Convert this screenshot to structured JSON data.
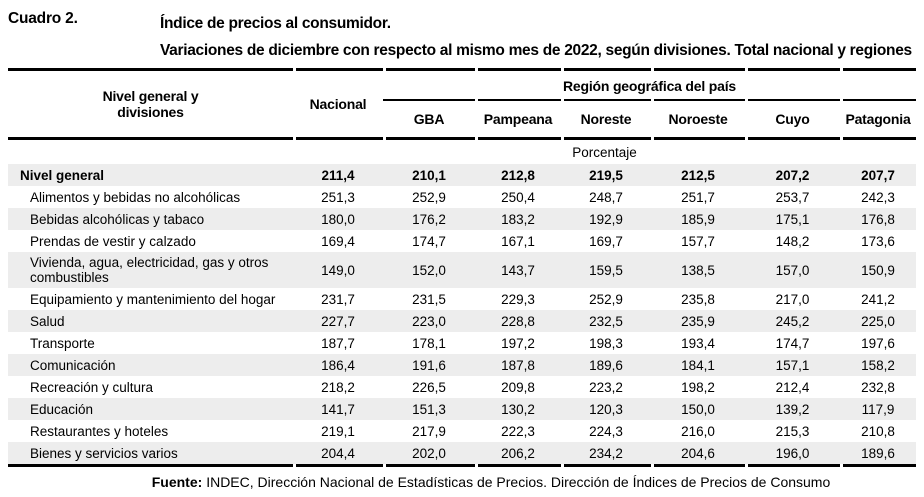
{
  "document": {
    "table_label": "Cuadro 2.",
    "title_line1": "Índice de precios al consumidor.",
    "title_line2": "Variaciones de diciembre con respecto al mismo mes de 2022, según divisiones. Total nacional y regiones",
    "source_label": "Fuente:",
    "source_text": "INDEC, Dirección Nacional de Estadísticas de Precios. Dirección de Índices de Precios de Consumo"
  },
  "table": {
    "col1_header": "Nivel general y divisiones",
    "nacional_header": "Nacional",
    "region_group_header": "Región geográfica del país",
    "region_headers": [
      "GBA",
      "Pampeana",
      "Noreste",
      "Noroeste",
      "Cuyo",
      "Patagonia"
    ],
    "unit_row_label": "Porcentaje",
    "rows": [
      {
        "label": "Nivel general",
        "bold": true,
        "values": [
          "211,4",
          "210,1",
          "212,8",
          "219,5",
          "212,5",
          "207,2",
          "207,7"
        ]
      },
      {
        "label": "Alimentos y bebidas no alcohólicas",
        "values": [
          "251,3",
          "252,9",
          "250,4",
          "248,7",
          "251,7",
          "253,7",
          "242,3"
        ]
      },
      {
        "label": "Bebidas alcohólicas y tabaco",
        "values": [
          "180,0",
          "176,2",
          "183,2",
          "192,9",
          "185,9",
          "175,1",
          "176,8"
        ]
      },
      {
        "label": "Prendas de vestir y calzado",
        "values": [
          "169,4",
          "174,7",
          "167,1",
          "169,7",
          "157,7",
          "148,2",
          "173,6"
        ]
      },
      {
        "label": "Vivienda, agua, electricidad, gas y otros combustibles",
        "two_line": true,
        "values": [
          "149,0",
          "152,0",
          "143,7",
          "159,5",
          "138,5",
          "157,0",
          "150,9"
        ]
      },
      {
        "label": "Equipamiento y mantenimiento del hogar",
        "values": [
          "231,7",
          "231,5",
          "229,3",
          "252,9",
          "235,8",
          "217,0",
          "241,2"
        ]
      },
      {
        "label": "Salud",
        "values": [
          "227,7",
          "223,0",
          "228,8",
          "232,5",
          "235,9",
          "245,2",
          "225,0"
        ]
      },
      {
        "label": "Transporte",
        "values": [
          "187,7",
          "178,1",
          "197,2",
          "198,3",
          "193,4",
          "174,7",
          "197,6"
        ]
      },
      {
        "label": "Comunicación",
        "values": [
          "186,4",
          "191,6",
          "187,8",
          "189,6",
          "184,1",
          "157,1",
          "158,2"
        ]
      },
      {
        "label": "Recreación y cultura",
        "values": [
          "218,2",
          "226,5",
          "209,8",
          "223,2",
          "198,2",
          "212,4",
          "232,8"
        ]
      },
      {
        "label": "Educación",
        "values": [
          "141,7",
          "151,3",
          "130,2",
          "120,3",
          "150,0",
          "139,2",
          "117,9"
        ]
      },
      {
        "label": "Restaurantes y hoteles",
        "values": [
          "219,1",
          "217,9",
          "222,3",
          "224,3",
          "216,0",
          "215,3",
          "210,8"
        ]
      },
      {
        "label": "Bienes y servicios varios",
        "values": [
          "204,4",
          "202,0",
          "206,2",
          "234,2",
          "204,6",
          "196,0",
          "189,6"
        ]
      }
    ]
  },
  "colors": {
    "stripe": "#ededed",
    "rule": "#000000",
    "text": "#000000",
    "background": "#ffffff"
  }
}
